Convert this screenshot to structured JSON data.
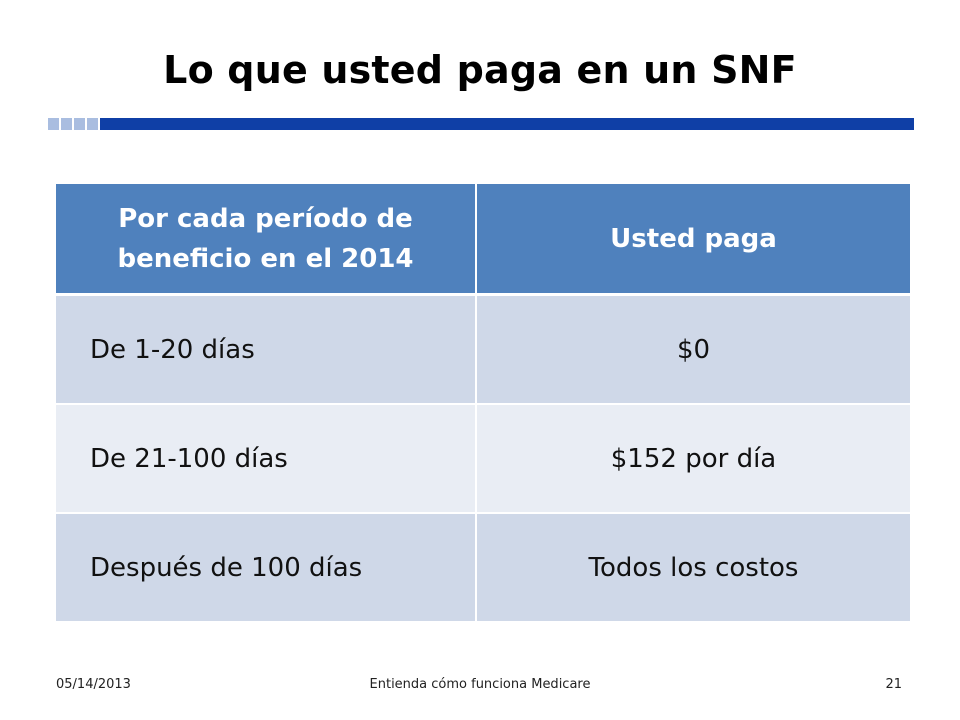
{
  "slide": {
    "title": "Lo que usted paga en un SNF",
    "rule_colors": {
      "accent_blocks": "#a9bde0",
      "main_bar": "#0f3fa6"
    }
  },
  "table": {
    "header_color": "#4f81bd",
    "row_colors": [
      "#cfd8e8",
      "#e9edf4"
    ],
    "headers": [
      "Por cada período de beneficio en el 2014",
      "Usted paga"
    ],
    "rows": [
      [
        "De 1-20 días",
        "$0"
      ],
      [
        "De 21-100 días",
        "$152 por día"
      ],
      [
        "Después de 100 días",
        "Todos los costos"
      ]
    ]
  },
  "footer": {
    "date": "05/14/2013",
    "center": "Entienda cómo funciona Medicare",
    "page": "21"
  }
}
